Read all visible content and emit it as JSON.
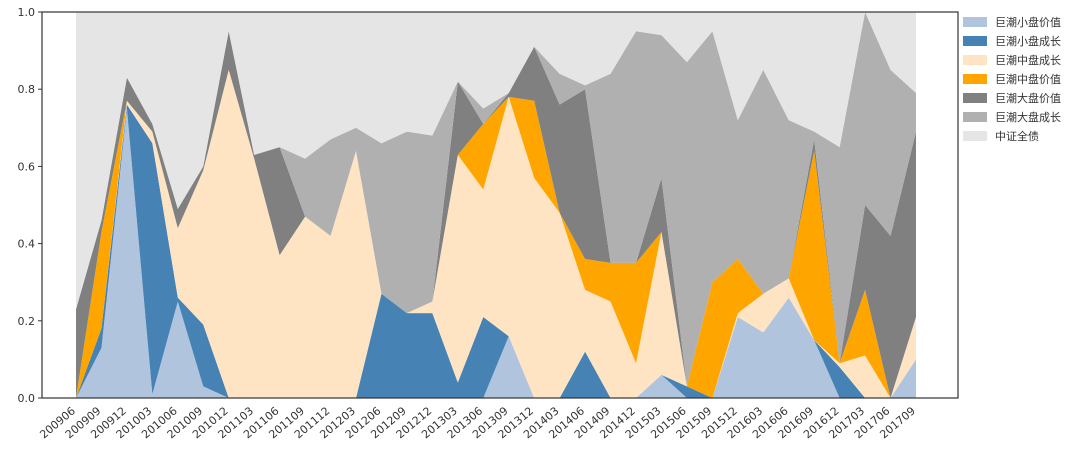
{
  "chart_data": {
    "type": "stacked_area",
    "categories": [
      "200906",
      "200909",
      "200912",
      "201003",
      "201006",
      "201009",
      "201012",
      "201103",
      "201106",
      "201109",
      "201112",
      "201203",
      "201206",
      "201209",
      "201212",
      "201303",
      "201306",
      "201309",
      "201312",
      "201403",
      "201406",
      "201409",
      "201412",
      "201503",
      "201506",
      "201509",
      "201512",
      "201603",
      "201606",
      "201609",
      "201612",
      "201703",
      "201706",
      "201709"
    ],
    "series": [
      {
        "name": "巨潮小盘价值",
        "color": "#b0c4de",
        "values": [
          0,
          0.13,
          0.75,
          0.01,
          0.25,
          0.03,
          0,
          0,
          0,
          0,
          0,
          0,
          0,
          0,
          0,
          0,
          0,
          0.16,
          0,
          0,
          0,
          0,
          0,
          0.06,
          0,
          0,
          0.21,
          0.17,
          0.26,
          0.15,
          0,
          0,
          0,
          0.1
        ]
      },
      {
        "name": "巨潮小盘成长",
        "color": "#4682b4",
        "values": [
          0,
          0.05,
          0.01,
          0.65,
          0.01,
          0.16,
          0,
          0,
          0,
          0,
          0,
          0,
          0.27,
          0.22,
          0.22,
          0.04,
          0.21,
          0,
          0,
          0,
          0.12,
          0,
          0,
          0,
          0.03,
          0,
          0,
          0,
          0,
          0,
          0.08,
          0,
          0,
          0
        ]
      },
      {
        "name": "巨潮中盘成长",
        "color": "#ffe4c4",
        "values": [
          0,
          0,
          0.01,
          0.03,
          0.18,
          0.4,
          0.85,
          0.62,
          0.37,
          0.47,
          0.42,
          0.64,
          0,
          0,
          0.03,
          0.59,
          0.33,
          0.62,
          0.57,
          0.48,
          0.16,
          0.25,
          0.09,
          0.37,
          0,
          0,
          0.01,
          0.1,
          0.05,
          0,
          0.01,
          0.11,
          0,
          0.11
        ]
      },
      {
        "name": "巨潮中盘价值",
        "color": "#ffa500",
        "values": [
          0,
          0.25,
          0,
          0,
          0,
          0,
          0,
          0,
          0,
          0,
          0,
          0,
          0,
          0,
          0,
          0,
          0.17,
          0,
          0.2,
          0,
          0.08,
          0.1,
          0.26,
          0,
          0,
          0.3,
          0.14,
          0,
          0,
          0.49,
          0,
          0.17,
          0,
          0
        ]
      },
      {
        "name": "巨潮大盘价值",
        "color": "#808080",
        "values": [
          0.23,
          0.03,
          0.06,
          0.02,
          0.05,
          0.01,
          0.1,
          0.01,
          0.28,
          0,
          0,
          0,
          0,
          0,
          0,
          0.19,
          0,
          0.01,
          0.14,
          0.28,
          0.44,
          0,
          0,
          0.14,
          0,
          0,
          0,
          0,
          0,
          0.03,
          0,
          0.22,
          0.42,
          0.48
        ]
      },
      {
        "name": "巨潮大盘成长",
        "color": "#b0b0b0",
        "values": [
          0,
          0,
          0,
          0,
          0,
          0,
          0,
          0,
          0,
          0.15,
          0.25,
          0.06,
          0.39,
          0.47,
          0.43,
          0,
          0.04,
          0,
          0,
          0.08,
          0.01,
          0.49,
          0.6,
          0.37,
          0.84,
          0.65,
          0.36,
          0.58,
          0.41,
          0.02,
          0.56,
          0.5,
          0.43,
          0.1
        ]
      },
      {
        "name": "中证全债",
        "color": "#e5e5e5",
        "values": [
          0.77,
          0.54,
          0.17,
          0.29,
          0.51,
          0.4,
          0.05,
          0.37,
          0.35,
          0.38,
          0.33,
          0.3,
          0.34,
          0.31,
          0.32,
          0.18,
          0.25,
          0.21,
          0.09,
          0.16,
          0.19,
          0.16,
          0.05,
          0.06,
          0.13,
          0.05,
          0.28,
          0.15,
          0.28,
          0.31,
          0.35,
          0,
          0.15,
          0.21
        ]
      }
    ],
    "ylim": [
      0,
      1
    ],
    "yticks": [
      {
        "value": 0,
        "label": "0.0"
      },
      0.2,
      0.4,
      0.6,
      0.8,
      {
        "value": 1,
        "label": "1.0"
      }
    ]
  }
}
